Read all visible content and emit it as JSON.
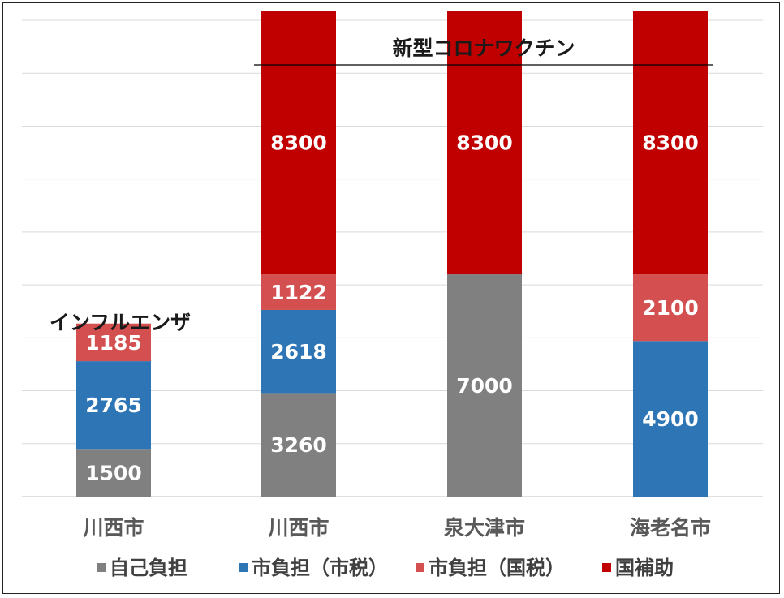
{
  "chart_data": {
    "type": "bar",
    "stacked": true,
    "categories": [
      "川西市",
      "川西市",
      "泉大津市",
      "海老名市"
    ],
    "series": [
      {
        "name": "自己負担",
        "color": "#808080",
        "values": [
          1500,
          3260,
          7000,
          0
        ]
      },
      {
        "name": "市負担（市税）",
        "color": "#2e75b6",
        "values": [
          2765,
          2618,
          0,
          4900
        ]
      },
      {
        "name": "市負担（国税）",
        "color": "#d45050",
        "values": [
          1185,
          1122,
          0,
          2100
        ]
      },
      {
        "name": "国補助",
        "color": "#c00000",
        "values": [
          0,
          8300,
          8300,
          8300
        ]
      }
    ],
    "ylim": [
      0,
      15000
    ],
    "grid": true,
    "legend": "bottom",
    "annotations": {
      "influenza": "インフルエンザ",
      "covid": "新型コロナワクチン"
    }
  }
}
